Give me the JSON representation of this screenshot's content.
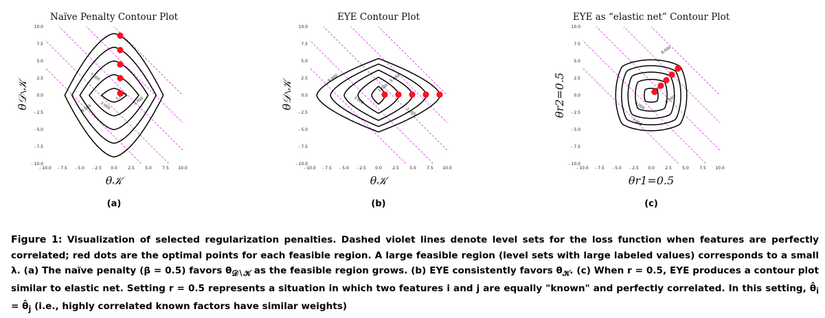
{
  "panels": [
    {
      "id": "a",
      "title": "Naïve Penalty Contour Plot",
      "xlabel": "θ𝒦",
      "ylabel": "θ𝒟∖𝒦",
      "sublabel": "(a)",
      "contour_labels": [
        "1.000",
        "3.000",
        "5.000",
        "7.000",
        "9.000"
      ]
    },
    {
      "id": "b",
      "title": "EYE Contour Plot",
      "xlabel": "θ𝒦",
      "ylabel": "θ𝒟∖𝒦",
      "sublabel": "(b)",
      "contour_labels": [
        "1.000",
        "3.000",
        "5.000",
        "7.000",
        "9.000"
      ]
    },
    {
      "id": "c",
      "title": "EYE as “elastic net” Contour Plot",
      "xlabel": "θr1=0.5",
      "ylabel": "θr2=0.5",
      "sublabel": "(c)",
      "contour_labels": [
        "1.000",
        "3.000",
        "5.000",
        "7.000",
        "9.000"
      ]
    }
  ],
  "ticks": [
    "- 10.0",
    "- 7.5",
    "- 5.0",
    "- 2.5",
    "0.0",
    "2.5",
    "5.0",
    "7.5",
    "10.0"
  ],
  "colors": {
    "contour": "#000000",
    "levelset": "#e15cec",
    "optimum": "#ff1020"
  },
  "chart_data": [
    {
      "type": "contour",
      "title": "Naïve Penalty Contour Plot",
      "xlabel": "θ𝒦",
      "ylabel": "θ𝒟∖𝒦",
      "xlim": [
        -10,
        10
      ],
      "ylim": [
        -10,
        10
      ],
      "levels": [
        1,
        3,
        5,
        7,
        9
      ],
      "optimal_points": [
        {
          "x": 0.9,
          "y": 0.3
        },
        {
          "x": 0.9,
          "y": 2.5
        },
        {
          "x": 0.9,
          "y": 4.5
        },
        {
          "x": 0.9,
          "y": 6.6
        },
        {
          "x": 0.9,
          "y": 8.7
        }
      ]
    },
    {
      "type": "contour",
      "title": "EYE Contour Plot",
      "xlabel": "θ𝒦",
      "ylabel": "θ𝒟∖𝒦",
      "xlim": [
        -10,
        10
      ],
      "ylim": [
        -10,
        10
      ],
      "levels": [
        1,
        3,
        5,
        7,
        9
      ],
      "optimal_points": [
        {
          "x": 0.9,
          "y": 0.1
        },
        {
          "x": 2.9,
          "y": 0.1
        },
        {
          "x": 4.9,
          "y": 0.1
        },
        {
          "x": 6.9,
          "y": 0.1
        },
        {
          "x": 8.9,
          "y": 0.1
        }
      ]
    },
    {
      "type": "contour",
      "title": "EYE as “elastic net” Contour Plot",
      "xlabel": "θr1=0.5",
      "ylabel": "θr2=0.5",
      "xlim": [
        -10,
        10
      ],
      "ylim": [
        -10,
        10
      ],
      "levels": [
        1,
        3,
        5,
        7,
        9
      ],
      "optimal_points": [
        {
          "x": 0.5,
          "y": 0.5
        },
        {
          "x": 1.4,
          "y": 1.4
        },
        {
          "x": 2.2,
          "y": 2.2
        },
        {
          "x": 3.0,
          "y": 3.0
        },
        {
          "x": 3.9,
          "y": 3.9
        }
      ]
    }
  ],
  "caption": {
    "lead": "Figure 1:",
    "segments": [
      " Visualization of selected regularization penalties. Dashed violet lines denote level sets for the loss function when features are perfectly correlated; red dots are the optimal points for each feasible region. A large feasible region (level sets with large labeled values) corresponds to a small λ. (a) The naïve penalty (β = 0.5) favors θ",
      "𝒟∖𝒦",
      " as the feasible region grows. (b) EYE consistently favors θ",
      "𝒦",
      ". (c) When r = 0.5, EYE produces a contour plot similar to elastic net. Setting r = 0.5 represents a situation in which two features i and j are equally \"known\" and perfectly correlated. In this setting, θ̂",
      "i",
      " = θ̂",
      "j",
      " (i.e., highly correlated known factors have similar weights)"
    ]
  }
}
